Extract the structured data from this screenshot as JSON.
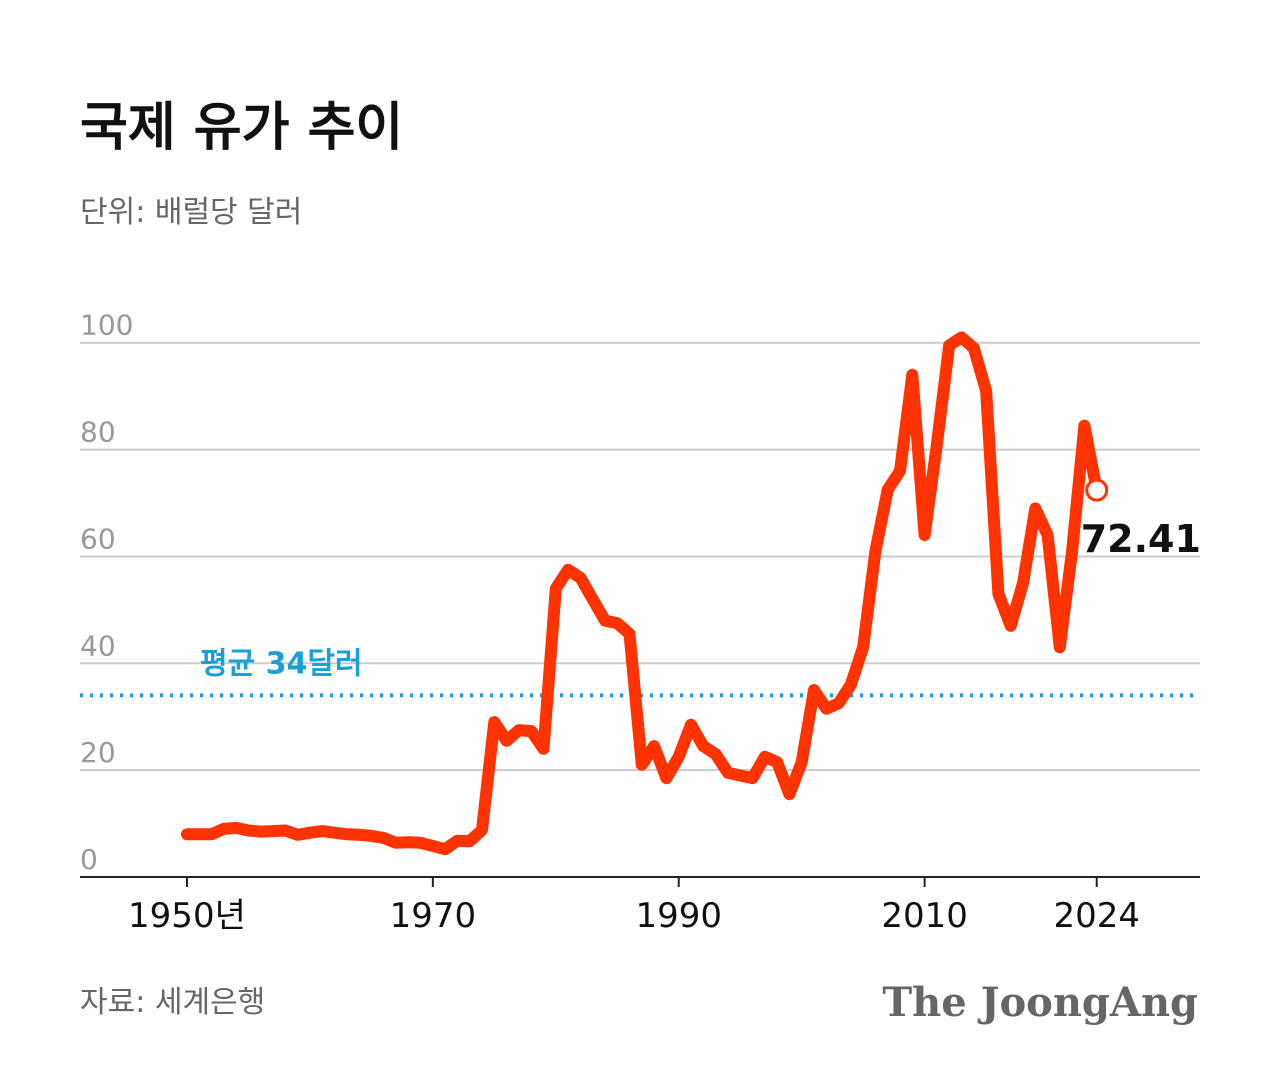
{
  "chart_data": {
    "type": "line",
    "title": "국제 유가 추이",
    "subtitle": "단위: 배럴당 달러",
    "source": "자료: 세계은행",
    "brand": "The JoongAng",
    "x": [
      1950,
      1951,
      1952,
      1953,
      1954,
      1955,
      1956,
      1957,
      1958,
      1959,
      1960,
      1961,
      1962,
      1963,
      1964,
      1965,
      1966,
      1967,
      1968,
      1969,
      1970,
      1971,
      1972,
      1973,
      1974,
      1975,
      1976,
      1977,
      1978,
      1979,
      1980,
      1981,
      1982,
      1983,
      1984,
      1985,
      1986,
      1987,
      1988,
      1989,
      1990,
      1991,
      1992,
      1993,
      1994,
      1995,
      1996,
      1997,
      1998,
      1999,
      2000,
      2001,
      2002,
      2003,
      2004,
      2005,
      2006,
      2007,
      2008,
      2009,
      2010,
      2011,
      2012,
      2013,
      2014,
      2015,
      2016,
      2017,
      2018,
      2019,
      2020,
      2021,
      2022,
      2023,
      2024
    ],
    "series": [
      {
        "name": "국제 유가",
        "color": "#ff3300",
        "values": [
          8,
          8,
          8,
          9,
          9.2,
          8.7,
          8.5,
          8.6,
          8.7,
          7.9,
          8.3,
          8.6,
          8.3,
          8,
          7.9,
          7.7,
          7.3,
          6.4,
          6.5,
          6.4,
          5.8,
          5.2,
          6.8,
          6.7,
          8.8,
          29,
          25.5,
          27.5,
          27.3,
          24,
          54,
          57.5,
          56,
          52,
          48,
          47.5,
          45.5,
          21,
          24.5,
          18.5,
          22.5,
          28.5,
          24.5,
          23,
          19.5,
          19,
          18.5,
          22.5,
          21.5,
          15.5,
          21.5,
          35,
          31.5,
          32.5,
          36,
          43,
          61,
          72.5,
          76,
          94,
          64,
          81,
          99.5,
          101,
          99,
          91,
          53,
          47,
          55,
          69,
          64,
          43,
          61,
          84.5,
          72.41
        ]
      }
    ],
    "xlim": [
      1941.3,
      2032.4
    ],
    "xticks": [
      {
        "value": 1950,
        "label": "1950년"
      },
      1970,
      1990,
      2010,
      2024
    ],
    "ylim": [
      0,
      108
    ],
    "yticks": [
      0,
      20,
      40,
      60,
      80,
      100
    ],
    "grid": true,
    "average": {
      "value": 34,
      "label": "평균 34달러",
      "color": "#1a9fd6"
    }
  }
}
